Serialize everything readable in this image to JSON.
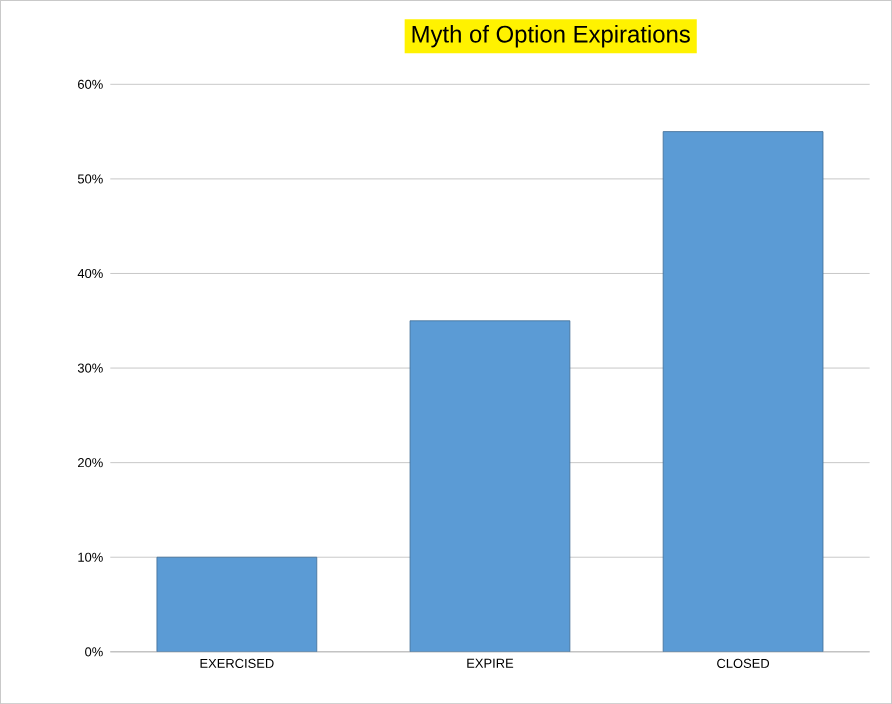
{
  "chart_data": {
    "type": "bar",
    "title": "Myth of Option Expirations",
    "categories": [
      "EXERCISED",
      "EXPIRE",
      "CLOSED"
    ],
    "values": [
      10,
      35,
      55
    ],
    "color": "#5b9bd5",
    "ylim": [
      0,
      60
    ],
    "yticks": [
      {
        "value": 0,
        "label": "0%"
      },
      {
        "value": 10,
        "label": "10%"
      },
      {
        "value": 20,
        "label": "20%"
      },
      {
        "value": 30,
        "label": "30%"
      },
      {
        "value": 40,
        "label": "40%"
      },
      {
        "value": 50,
        "label": "50%"
      },
      {
        "value": 60,
        "label": "60%"
      }
    ],
    "grid": "y"
  }
}
